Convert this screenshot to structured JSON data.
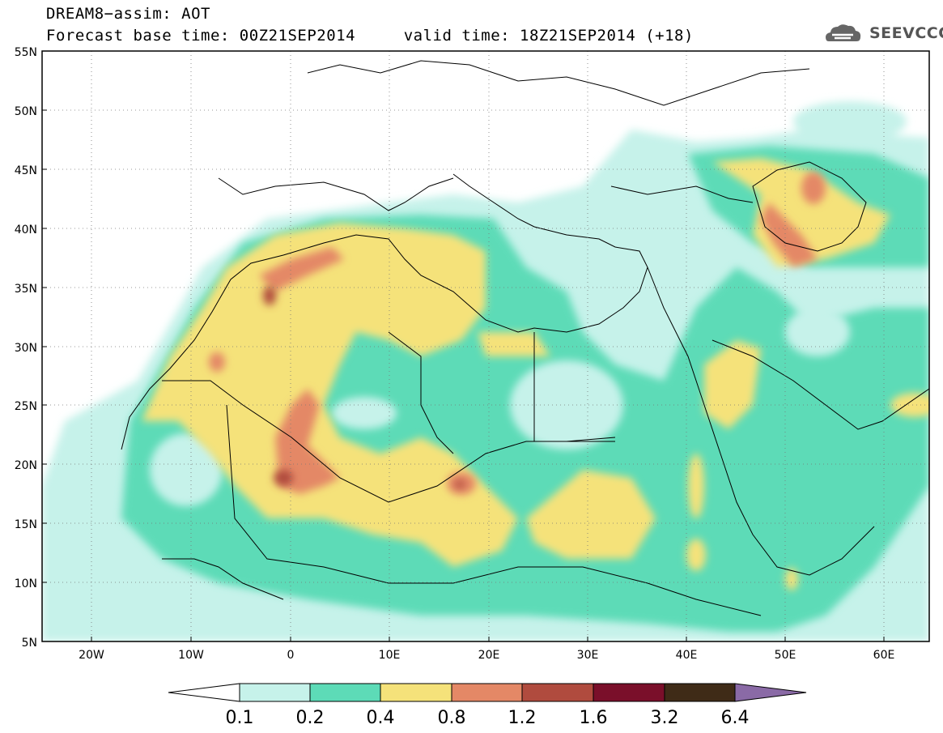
{
  "title": {
    "line1": "DREAM8−assim: AOT",
    "line2": "Forecast base time: 00Z21SEP2014     valid time: 18Z21SEP2014 (+18)"
  },
  "brand": {
    "text": "SEEVCCC",
    "icon": "cloud-logo-icon"
  },
  "map": {
    "lon_range": [
      -25,
      65
    ],
    "lat_range": [
      5,
      55
    ],
    "lon_ticks": [
      "20W",
      "10W",
      "0",
      "10E",
      "20E",
      "30E",
      "40E",
      "50E",
      "60E"
    ],
    "lat_ticks": [
      "55N",
      "50N",
      "45N",
      "40N",
      "35N",
      "30N",
      "25N",
      "20N",
      "15N",
      "10N",
      "5N"
    ]
  },
  "colorbar": {
    "labels": [
      "0.1",
      "0.2",
      "0.4",
      "0.8",
      "1.2",
      "1.6",
      "3.2",
      "6.4"
    ],
    "colors": [
      "#c6f2ea",
      "#5ddbb7",
      "#f5e27a",
      "#e48866",
      "#b04b3e",
      "#7a0f2a",
      "#3f2b17",
      "#8a6aa6"
    ]
  }
}
